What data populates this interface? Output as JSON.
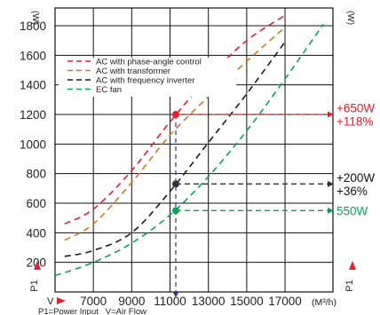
{
  "chart_data": {
    "type": "line",
    "x_unit_label": "(M³/h)",
    "y_unit_label": "(W)",
    "y_axis_marker": "P1",
    "x_axis_marker": "V",
    "footer_caption": "P1=Power Input   V=Air Flow",
    "xlim": [
      5000,
      19500
    ],
    "ylim": [
      0,
      1920
    ],
    "x_ticks": [
      7000,
      9000,
      11000,
      13000,
      15000,
      17000
    ],
    "x_tick_labels": [
      "7000",
      "9000",
      "11000",
      "13000",
      "15000",
      "17000"
    ],
    "y_ticks": [
      200,
      400,
      600,
      800,
      1000,
      1200,
      1400,
      1600,
      1800
    ],
    "y_tick_labels": [
      "200",
      "400",
      "600",
      "800",
      "1000",
      "1200",
      "1400",
      "1600",
      "1800"
    ],
    "grid": true,
    "legend_position": "top-left",
    "operating_point_x": 11300,
    "series": [
      {
        "name": "AC with phase-angle control",
        "color": "#e0202a",
        "x": [
          5500,
          7000,
          9000,
          11000,
          13000,
          15000,
          17000
        ],
        "y": [
          460,
          560,
          820,
          1150,
          1450,
          1700,
          1870
        ]
      },
      {
        "name": "AC with transformer",
        "color": "#d2781e",
        "x": [
          5500,
          7000,
          9000,
          11000,
          13000,
          15000,
          17000
        ],
        "y": [
          350,
          460,
          740,
          1060,
          1320,
          1560,
          1790
        ]
      },
      {
        "name": "AC with frequency inverter",
        "color": "#1a1a1a",
        "x": [
          5500,
          7000,
          9000,
          11000,
          13000,
          15000,
          17000
        ],
        "y": [
          240,
          280,
          400,
          680,
          1010,
          1340,
          1690
        ]
      },
      {
        "name": "EC fan",
        "color": "#11a05a",
        "x": [
          5000,
          7000,
          9000,
          11000,
          13000,
          15000,
          17000,
          19000
        ],
        "y": [
          110,
          200,
          330,
          520,
          780,
          1090,
          1440,
          1810
        ]
      }
    ],
    "markers": [
      {
        "series": "AC with phase-angle control",
        "y": 1200,
        "color": "#e0202a",
        "labels": [
          "+650W",
          "+118%"
        ]
      },
      {
        "series": "AC with frequency inverter",
        "y": 730,
        "color": "#333333",
        "labels": [
          "+200W",
          "+36%"
        ]
      },
      {
        "series": "EC fan",
        "y": 550,
        "color": "#11a05a",
        "labels": [
          "550W"
        ]
      }
    ]
  }
}
